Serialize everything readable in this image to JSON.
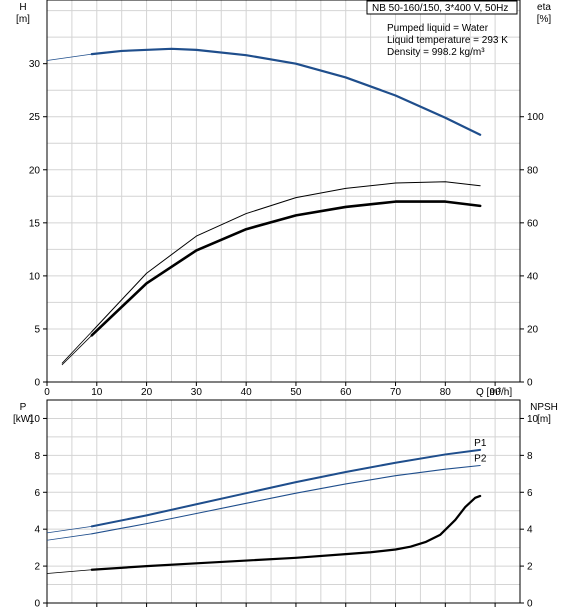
{
  "info": {
    "title": "NB 50-160/150, 3*400 V, 50Hz",
    "lines": [
      "Pumped liquid = Water",
      "Liquid temperature = 293 K",
      "Density = 998.2 kg/m³"
    ]
  },
  "chart_data": [
    {
      "type": "line",
      "panel": "top",
      "xlabel": "Q [m³/h]",
      "xlim": [
        0,
        95
      ],
      "xticks": [
        0,
        10,
        20,
        30,
        40,
        50,
        60,
        70,
        80,
        90
      ],
      "y_left": {
        "label_top": "H",
        "label_unit": "[m]",
        "lim": [
          0,
          36
        ],
        "ticks": [
          0,
          5,
          10,
          15,
          20,
          25,
          30
        ]
      },
      "y_right": {
        "label_top": "eta",
        "label_unit": "[%]",
        "lim": [
          0,
          144
        ],
        "ticks": [
          0,
          20,
          40,
          60,
          80,
          100
        ]
      },
      "grid": true,
      "series": [
        {
          "axis": "left",
          "color": "#1f4e8c",
          "width": 2.2,
          "start_style": "thin",
          "x": [
            0,
            9,
            15,
            25,
            30,
            40,
            50,
            60,
            70,
            80,
            87
          ],
          "y": [
            30.3,
            30.9,
            31.2,
            31.4,
            31.3,
            30.8,
            30.0,
            28.7,
            27.0,
            24.9,
            23.3
          ]
        },
        {
          "axis": "right",
          "color": "#000000",
          "width": 1.0,
          "start_style": "thin",
          "x": [
            3,
            9,
            20,
            30,
            40,
            50,
            60,
            70,
            80,
            87
          ],
          "y": [
            7,
            19,
            41,
            55,
            63.5,
            69.5,
            73,
            75,
            75.5,
            74
          ]
        },
        {
          "axis": "left",
          "color": "#000000",
          "width": 2.6,
          "start_style": "thin",
          "x": [
            3,
            9,
            20,
            30,
            40,
            50,
            60,
            70,
            80,
            87
          ],
          "y": [
            1.6,
            4.4,
            9.3,
            12.4,
            14.4,
            15.7,
            16.5,
            17.0,
            17.0,
            16.6
          ]
        }
      ]
    },
    {
      "type": "line",
      "panel": "bottom",
      "xlim": [
        0,
        95
      ],
      "xticks": [
        0,
        10,
        20,
        30,
        40,
        50,
        60,
        70,
        80,
        90
      ],
      "y_left": {
        "label_top": "P",
        "label_unit": "[kW]",
        "lim": [
          0,
          11
        ],
        "ticks": [
          0,
          2,
          4,
          6,
          8,
          10
        ]
      },
      "y_right": {
        "label_top": "NPSH",
        "label_unit": "[m]",
        "lim": [
          0,
          11
        ],
        "ticks": [
          0,
          2,
          4,
          6,
          8,
          10
        ]
      },
      "grid": true,
      "series": [
        {
          "name": "P1",
          "axis": "left",
          "color": "#1f4e8c",
          "width": 2.0,
          "start_style": "thin",
          "x": [
            0,
            9,
            20,
            30,
            40,
            50,
            60,
            70,
            80,
            87
          ],
          "y": [
            3.8,
            4.15,
            4.75,
            5.35,
            5.95,
            6.55,
            7.1,
            7.6,
            8.05,
            8.3
          ]
        },
        {
          "name": "P2",
          "axis": "left",
          "color": "#1f4e8c",
          "width": 1.1,
          "start_style": "thin",
          "x": [
            0,
            9,
            20,
            30,
            40,
            50,
            60,
            70,
            80,
            87
          ],
          "y": [
            3.4,
            3.75,
            4.3,
            4.85,
            5.4,
            5.95,
            6.45,
            6.9,
            7.25,
            7.45
          ]
        },
        {
          "axis": "right",
          "color": "#000000",
          "width": 2.2,
          "start_style": "thin",
          "x": [
            0,
            9,
            20,
            30,
            40,
            50,
            60,
            65,
            70,
            73,
            76,
            79,
            82,
            84,
            86,
            87
          ],
          "y": [
            1.6,
            1.8,
            2.0,
            2.15,
            2.3,
            2.45,
            2.65,
            2.75,
            2.9,
            3.05,
            3.3,
            3.7,
            4.5,
            5.2,
            5.7,
            5.8
          ]
        }
      ]
    }
  ]
}
